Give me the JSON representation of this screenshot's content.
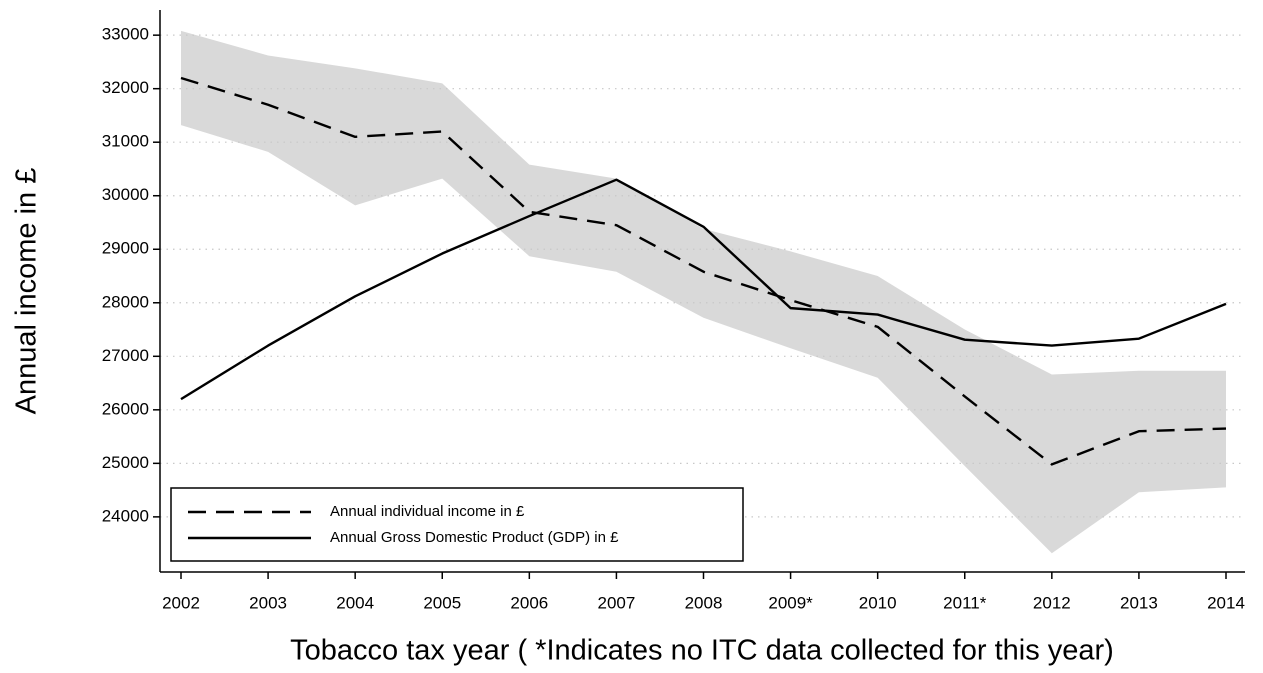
{
  "chart_data": {
    "type": "line",
    "y_label": "Annual income in £",
    "x_label": "Tobacco tax year ( *Indicates no ITC data collected for this year)",
    "categories": [
      "2002",
      "2003",
      "2004",
      "2005",
      "2006",
      "2007",
      "2008",
      "2009*",
      "2010",
      "2011*",
      "2012",
      "2013",
      "2014"
    ],
    "series": [
      {
        "name": "Annual individual income in £",
        "color": "#000000",
        "dash": true,
        "values": [
          32200,
          31700,
          31100,
          31200,
          29700,
          29450,
          28580,
          28050,
          27550,
          26250,
          24980,
          25600,
          25650
        ]
      },
      {
        "name": "Annual Gross Domestic Product (GDP) in £",
        "color": "#000000",
        "dash": false,
        "values": [
          26200,
          27200,
          28120,
          28920,
          29620,
          30300,
          29420,
          27900,
          27780,
          27310,
          27200,
          27330,
          27980
        ]
      }
    ],
    "band": {
      "color": "#d9d9d9",
      "upper": [
        33080,
        32620,
        32380,
        32100,
        30580,
        30320,
        29380,
        28960,
        28500,
        27500,
        26660,
        26730,
        26730
      ],
      "lower": [
        31320,
        30820,
        29820,
        30320,
        28870,
        28580,
        27720,
        27150,
        26600,
        24950,
        23320,
        24460,
        24550
      ]
    },
    "ylim": [
      22970,
      33470
    ],
    "yticks": [
      24000,
      25000,
      26000,
      27000,
      28000,
      29000,
      30000,
      31000,
      32000,
      33000
    ],
    "grid": true,
    "legend": "lower left"
  }
}
